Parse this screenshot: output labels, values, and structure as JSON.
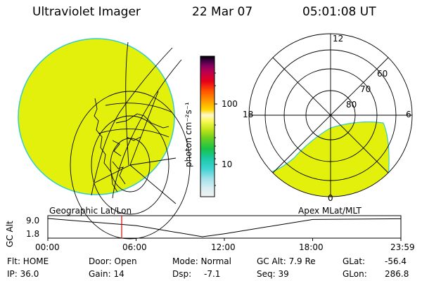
{
  "header": {
    "title": "Ultraviolet Imager",
    "date": "22 Mar 07",
    "time": "05:01:08 UT"
  },
  "colorbar": {
    "unit_label": "photon cm⁻²s⁻¹",
    "ticks": [
      "100",
      "10"
    ]
  },
  "polar": {
    "lat_labels": [
      "60",
      "70",
      "80"
    ],
    "mlt_labels": [
      "12",
      "18",
      "6",
      "0"
    ]
  },
  "timeline": {
    "left_caption": "Geographic Lat/Lon",
    "right_caption": "Apex MLat/MLT",
    "axis_label": "GC Alt",
    "y_ticks": [
      "9.0",
      "1.8"
    ],
    "x_ticks": [
      "00:00",
      "06:00",
      "12:00",
      "18:00",
      "23:59"
    ],
    "current_time_fraction": 0.2091,
    "chart_data": {
      "type": "line",
      "ylabel": "GC Alt",
      "ylim": [
        1.8,
        9.0
      ],
      "x": [
        "00:00",
        "06:00",
        "10:30",
        "12:00",
        "18:00",
        "23:59"
      ],
      "values": [
        9.0,
        6.2,
        1.8,
        3.0,
        8.6,
        8.9
      ]
    }
  },
  "status": {
    "flt": "Flt: HOME",
    "ip": "IP: 36.0",
    "door": "Door: Open",
    "gain": "Gain: 14",
    "mode": "Mode: Normal",
    "dsp_label": "Dsp:",
    "dsp_value": "-7.1",
    "gc_alt": "GC Alt: 7.9 Re",
    "seq": "Seq: 39",
    "glat_label": "GLat:",
    "glat_value": "-56.4",
    "glon_label": "GLon:",
    "glon_value": "286.8"
  },
  "colors": {
    "emission": "#e3f00c",
    "limb": "#33cccc"
  }
}
